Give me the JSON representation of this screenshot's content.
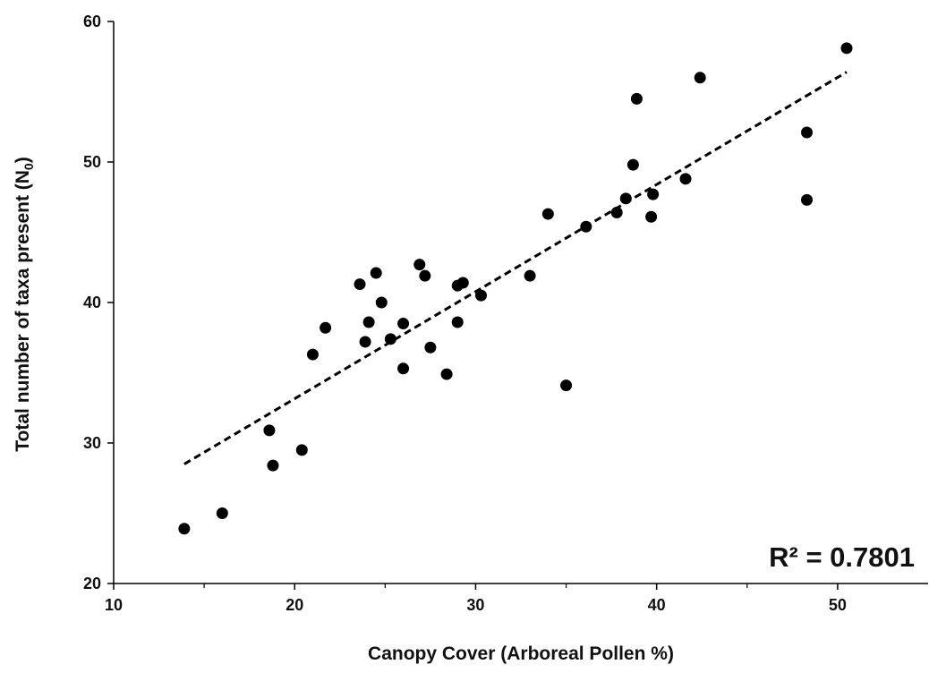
{
  "chart_data": {
    "type": "scatter",
    "title": "",
    "xlabel": "Canopy Cover (Arboreal Pollen %)",
    "ylabel_main": "Total number of taxa present (N",
    "ylabel_sub": "0",
    "ylabel_close": ")",
    "xlim": [
      10,
      55
    ],
    "ylim": [
      20,
      60
    ],
    "xticks": [
      10,
      20,
      30,
      40,
      50
    ],
    "yticks": [
      20,
      30,
      40,
      50,
      60
    ],
    "grid": false,
    "marker_color": "#000000",
    "series": [
      {
        "points": [
          [
            13.9,
            23.9
          ],
          [
            16.0,
            25.0
          ],
          [
            18.6,
            30.9
          ],
          [
            18.8,
            28.4
          ],
          [
            20.4,
            29.5
          ],
          [
            21.0,
            36.3
          ],
          [
            21.7,
            38.2
          ],
          [
            23.6,
            41.3
          ],
          [
            23.9,
            37.2
          ],
          [
            24.1,
            38.6
          ],
          [
            24.5,
            42.1
          ],
          [
            24.8,
            40.0
          ],
          [
            25.3,
            37.4
          ],
          [
            26.0,
            38.5
          ],
          [
            26.0,
            35.3
          ],
          [
            26.9,
            42.7
          ],
          [
            27.2,
            41.9
          ],
          [
            27.5,
            36.8
          ],
          [
            28.4,
            34.9
          ],
          [
            29.0,
            38.6
          ],
          [
            29.0,
            41.2
          ],
          [
            29.3,
            41.4
          ],
          [
            30.3,
            40.5
          ],
          [
            33.0,
            41.9
          ],
          [
            34.0,
            46.3
          ],
          [
            35.0,
            34.1
          ],
          [
            36.1,
            45.4
          ],
          [
            37.8,
            46.4
          ],
          [
            38.3,
            47.4
          ],
          [
            38.7,
            49.8
          ],
          [
            38.9,
            54.5
          ],
          [
            39.7,
            46.1
          ],
          [
            39.8,
            47.7
          ],
          [
            41.6,
            48.8
          ],
          [
            42.4,
            56.0
          ],
          [
            48.3,
            52.1
          ],
          [
            48.3,
            47.3
          ],
          [
            50.5,
            58.1
          ]
        ]
      }
    ],
    "trendline": {
      "style": "dashed",
      "color": "#000000",
      "x_start": 13.9,
      "y_start": 28.5,
      "x_end": 50.5,
      "y_end": 56.4
    },
    "annotation": "R² = 0.7801"
  }
}
